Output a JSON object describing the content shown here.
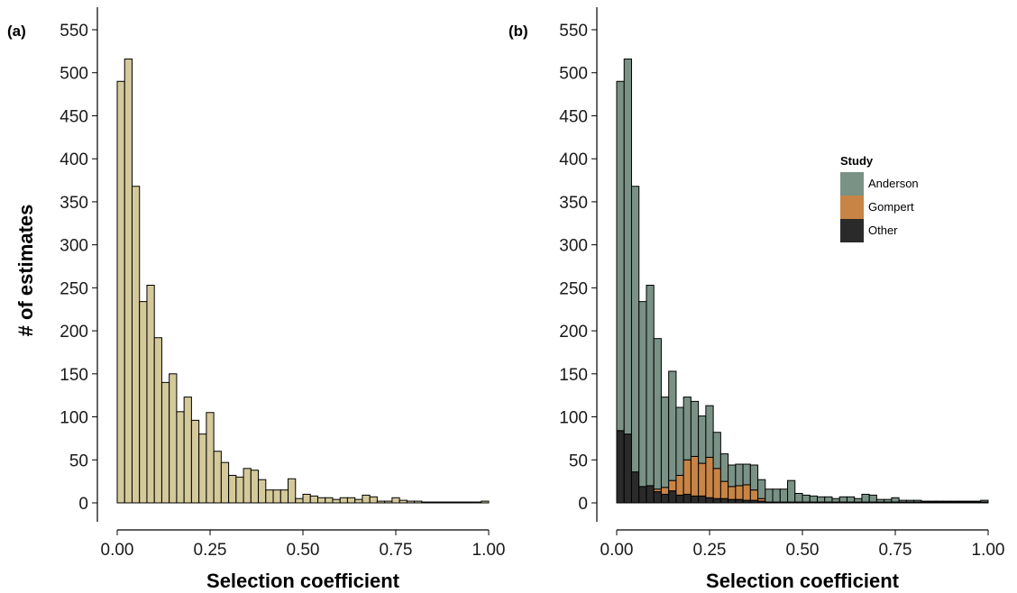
{
  "chart_data": [
    {
      "type": "bar",
      "panel": "(a)",
      "xlabel": "Selection coefficient",
      "ylabel": "# of estimates",
      "xlim": [
        0,
        1
      ],
      "ylim": [
        0,
        575
      ],
      "xticks": [
        0,
        0.25,
        0.5,
        0.75,
        1
      ],
      "xtick_labels": [
        "0.00",
        "0.25",
        "0.50",
        "0.75",
        "1.00"
      ],
      "yticks": [
        0,
        50,
        100,
        150,
        200,
        250,
        300,
        350,
        400,
        450,
        500,
        550
      ],
      "ytick_labels": [
        "0",
        "50",
        "100",
        "150",
        "200",
        "250",
        "300",
        "350",
        "400",
        "450",
        "500",
        "550"
      ],
      "bin_width": 0.02,
      "bin_centers": [
        0.01,
        0.03,
        0.05,
        0.07,
        0.09,
        0.11,
        0.13,
        0.15,
        0.17,
        0.19,
        0.21,
        0.23,
        0.25,
        0.27,
        0.29,
        0.31,
        0.33,
        0.35,
        0.37,
        0.39,
        0.41,
        0.43,
        0.45,
        0.47,
        0.49,
        0.51,
        0.53,
        0.55,
        0.57,
        0.59,
        0.61,
        0.63,
        0.65,
        0.67,
        0.69,
        0.71,
        0.73,
        0.75,
        0.77,
        0.79,
        0.81,
        0.83,
        0.85,
        0.87,
        0.89,
        0.91,
        0.93,
        0.95,
        0.97,
        0.99
      ],
      "series": [
        {
          "color": "#d4c99a",
          "values": [
            490,
            516,
            368,
            234,
            253,
            192,
            140,
            150,
            106,
            123,
            96,
            80,
            105,
            60,
            47,
            32,
            30,
            40,
            38,
            27,
            15,
            15,
            15,
            28,
            5,
            10,
            8,
            6,
            6,
            4,
            6,
            6,
            4,
            9,
            7,
            2,
            2,
            6,
            3,
            2,
            2,
            1,
            1,
            1,
            1,
            1,
            1,
            1,
            1,
            2
          ]
        }
      ]
    },
    {
      "type": "bar",
      "stacked": true,
      "panel": "(b)",
      "xlabel": "Selection coefficient",
      "ylabel": "",
      "xlim": [
        0,
        1
      ],
      "ylim": [
        0,
        575
      ],
      "xticks": [
        0,
        0.25,
        0.5,
        0.75,
        1
      ],
      "xtick_labels": [
        "0.00",
        "0.25",
        "0.50",
        "0.75",
        "1.00"
      ],
      "yticks": [
        0,
        50,
        100,
        150,
        200,
        250,
        300,
        350,
        400,
        450,
        500,
        550
      ],
      "ytick_labels": [
        "0",
        "50",
        "100",
        "150",
        "200",
        "250",
        "300",
        "350",
        "400",
        "450",
        "500",
        "550"
      ],
      "bin_width": 0.02,
      "bin_centers": [
        0.01,
        0.03,
        0.05,
        0.07,
        0.09,
        0.11,
        0.13,
        0.15,
        0.17,
        0.19,
        0.21,
        0.23,
        0.25,
        0.27,
        0.29,
        0.31,
        0.33,
        0.35,
        0.37,
        0.39,
        0.41,
        0.43,
        0.45,
        0.47,
        0.49,
        0.51,
        0.53,
        0.55,
        0.57,
        0.59,
        0.61,
        0.63,
        0.65,
        0.67,
        0.69,
        0.71,
        0.73,
        0.75,
        0.77,
        0.79,
        0.81,
        0.83,
        0.85,
        0.87,
        0.89,
        0.91,
        0.93,
        0.95,
        0.97,
        0.99
      ],
      "legend": {
        "title": "Study",
        "position": "top-right"
      },
      "series": [
        {
          "name": "Anderson",
          "color": "#7a9286",
          "values": [
            406,
            436,
            332,
            215,
            233,
            175,
            105,
            127,
            79,
            73,
            64,
            55,
            60,
            42,
            32,
            25,
            25,
            24,
            29,
            22,
            15,
            15,
            15,
            25,
            10,
            8,
            7,
            6,
            6,
            4,
            6,
            6,
            4,
            9,
            8,
            3,
            3,
            5,
            2,
            2,
            2,
            1,
            1,
            1,
            1,
            1,
            1,
            1,
            1,
            2
          ]
        },
        {
          "name": "Gompert",
          "color": "#c88445",
          "values": [
            0,
            0,
            0,
            0,
            0,
            3,
            8,
            12,
            23,
            40,
            46,
            38,
            47,
            35,
            20,
            15,
            16,
            18,
            12,
            3,
            0,
            0,
            0,
            0,
            0,
            0,
            0,
            0,
            0,
            0,
            0,
            0,
            0,
            0,
            0,
            0,
            0,
            0,
            0,
            0,
            0,
            0,
            0,
            0,
            0,
            0,
            0,
            0,
            0,
            0
          ]
        },
        {
          "name": "Other",
          "color": "#2a2a2a",
          "values": [
            84,
            80,
            36,
            19,
            20,
            13,
            10,
            14,
            9,
            10,
            8,
            8,
            6,
            5,
            5,
            4,
            4,
            3,
            3,
            2,
            1,
            1,
            1,
            1,
            1,
            1,
            1,
            1,
            1,
            1,
            1,
            1,
            1,
            1,
            1,
            1,
            1,
            1,
            1,
            1,
            1,
            1,
            1,
            1,
            1,
            1,
            1,
            1,
            1,
            1
          ]
        }
      ]
    }
  ]
}
